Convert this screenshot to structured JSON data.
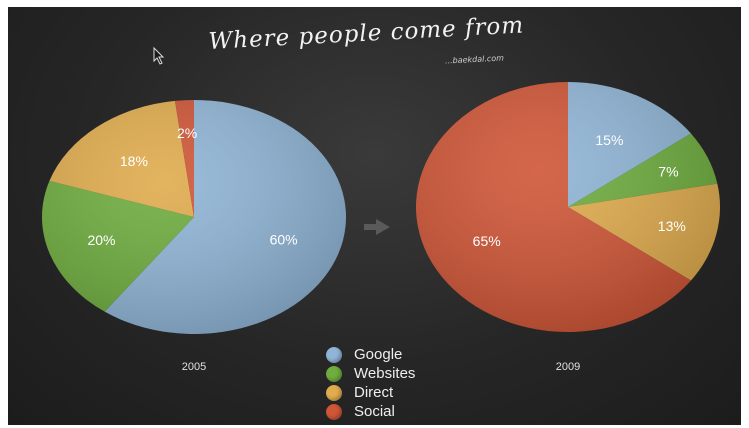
{
  "title": "Where people come from",
  "subtitle": "...baekdal.com",
  "chart_data": [
    {
      "type": "pie",
      "xlabel": "2005",
      "series": [
        {
          "name": "Google",
          "value": 60
        },
        {
          "name": "Websites",
          "value": 20
        },
        {
          "name": "Direct",
          "value": 18
        },
        {
          "name": "Social",
          "value": 2
        }
      ],
      "data_labels": [
        "60%",
        "20%",
        "18%",
        "2%"
      ]
    },
    {
      "type": "pie",
      "xlabel": "2009",
      "series": [
        {
          "name": "Google",
          "value": 15
        },
        {
          "name": "Websites",
          "value": 7
        },
        {
          "name": "Direct",
          "value": 13
        },
        {
          "name": "Social",
          "value": 65
        }
      ],
      "data_labels": [
        "15%",
        "7%",
        "13%",
        "65%"
      ]
    }
  ],
  "legend": [
    {
      "label": "Google",
      "color": "#90b5d6"
    },
    {
      "label": "Websites",
      "color": "#6fad3f"
    },
    {
      "label": "Direct",
      "color": "#e0ac4e"
    },
    {
      "label": "Social",
      "color": "#cf5637"
    }
  ],
  "legend_placement": "bottom-center",
  "colors": {
    "Google": "#90b5d6",
    "Websites": "#6fad3f",
    "Direct": "#e0ac4e",
    "Social": "#cf5637",
    "background": "#262626",
    "arrow": "#5a5a5a"
  }
}
